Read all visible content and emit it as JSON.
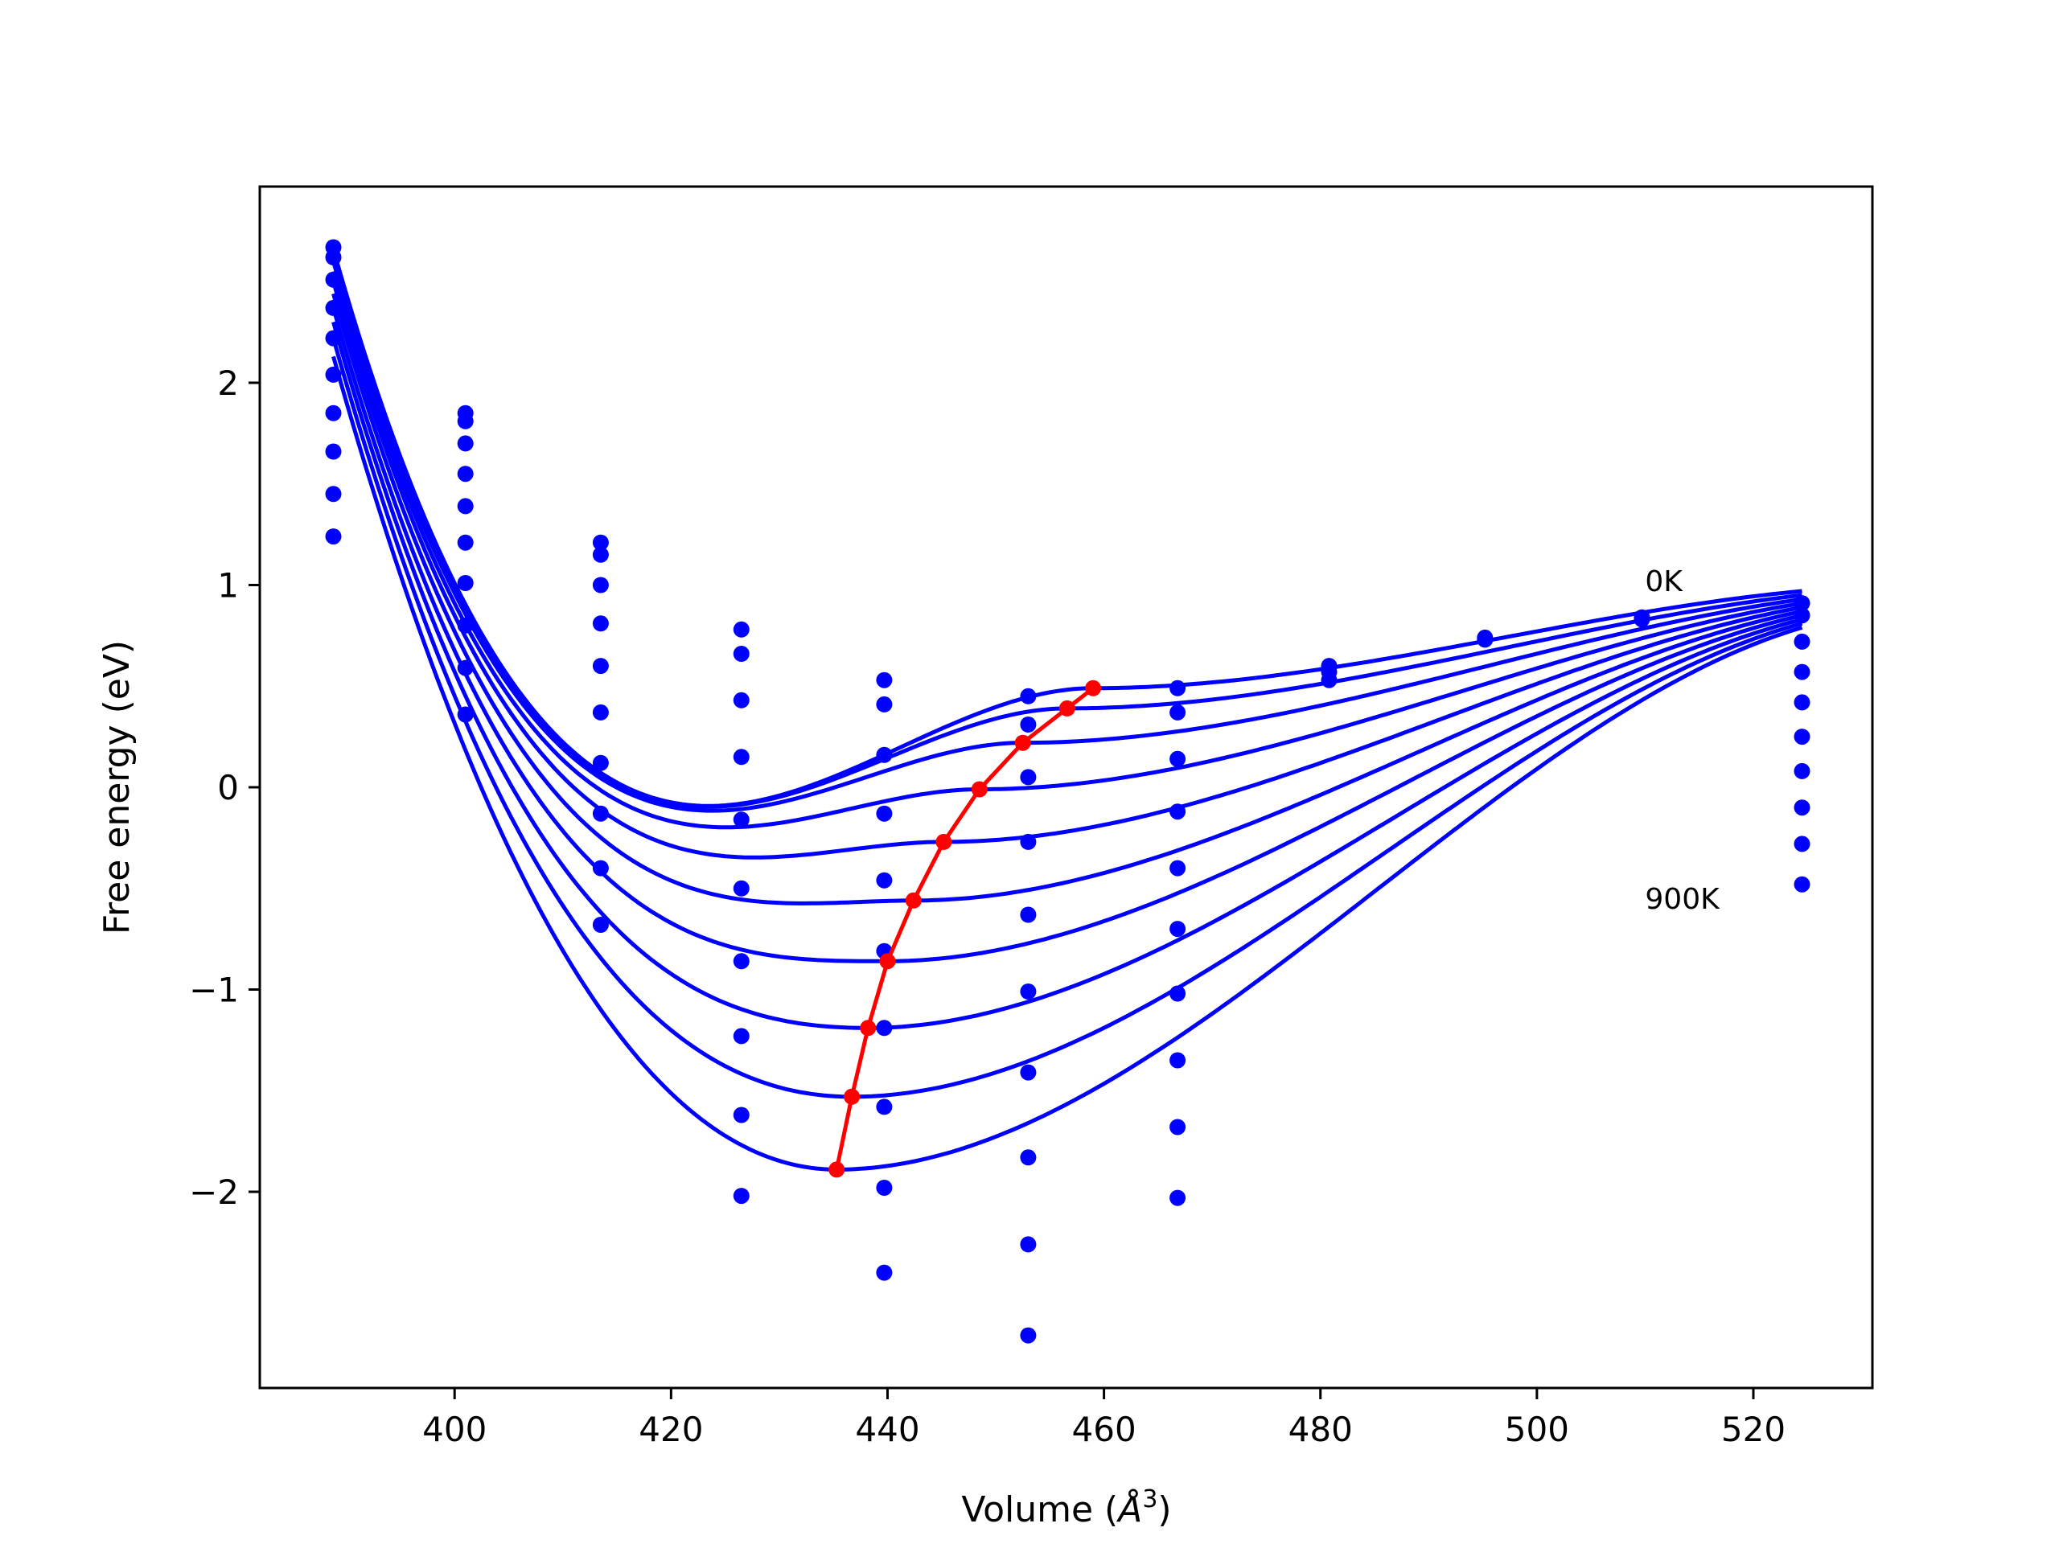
{
  "chart_data": {
    "type": "line",
    "xlabel_main": "Volume (",
    "xlabel_unit": "Å",
    "xlabel_exp": "3",
    "xlabel_close": ")",
    "ylabel": "Free energy (eV)",
    "xlim": [
      382,
      531
    ],
    "ylim": [
      -2.97,
      2.97
    ],
    "xticks": [
      400,
      420,
      440,
      460,
      480,
      500,
      520
    ],
    "yticks": [
      -2,
      -1,
      0,
      1,
      2
    ],
    "ytick_labels": [
      "−2",
      "−1",
      "0",
      "1",
      "2"
    ],
    "annotations": [
      {
        "text": "0K",
        "x": 510,
        "y": 0.97
      },
      {
        "text": "900K",
        "x": 510,
        "y": -0.6
      }
    ],
    "colors": {
      "curves": "#0000ff",
      "points": "#0000ff",
      "minimum_path": "#ff0000"
    },
    "isotherms": [
      {
        "min_volume": 459.0,
        "min_energy": 0.49,
        "left_energy": 2.66,
        "right_energy": 0.97
      },
      {
        "min_volume": 456.6,
        "min_energy": 0.39,
        "left_energy": 2.64,
        "right_energy": 0.95
      },
      {
        "min_volume": 452.5,
        "min_energy": 0.22,
        "left_energy": 2.6,
        "right_energy": 0.93
      },
      {
        "min_volume": 448.5,
        "min_energy": -0.01,
        "left_energy": 2.55,
        "right_energy": 0.91
      },
      {
        "min_volume": 445.2,
        "min_energy": -0.27,
        "left_energy": 2.5,
        "right_energy": 0.89
      },
      {
        "min_volume": 442.4,
        "min_energy": -0.56,
        "left_energy": 2.44,
        "right_energy": 0.87
      },
      {
        "min_volume": 440.0,
        "min_energy": -0.86,
        "left_energy": 2.37,
        "right_energy": 0.85
      },
      {
        "min_volume": 438.2,
        "min_energy": -1.19,
        "left_energy": 2.3,
        "right_energy": 0.83
      },
      {
        "min_volume": 436.7,
        "min_energy": -1.53,
        "left_energy": 2.22,
        "right_energy": 0.81
      },
      {
        "min_volume": 435.3,
        "min_energy": -1.89,
        "left_energy": 2.13,
        "right_energy": 0.79
      }
    ],
    "minimum_path": {
      "x": [
        459.0,
        456.6,
        452.5,
        448.5,
        445.2,
        442.4,
        440.0,
        438.2,
        436.7,
        435.3
      ],
      "y": [
        0.49,
        0.39,
        0.22,
        -0.01,
        -0.27,
        -0.56,
        -0.86,
        -1.19,
        -1.53,
        -1.89
      ]
    },
    "data_points": [
      {
        "x": 388.8,
        "y": [
          2.67,
          2.62,
          2.51,
          2.37,
          2.22,
          2.04,
          1.85,
          1.66,
          1.45,
          1.24
        ]
      },
      {
        "x": 401.0,
        "y": [
          1.85,
          1.81,
          1.7,
          1.55,
          1.39,
          1.21,
          1.01,
          0.8,
          0.59,
          0.36
        ]
      },
      {
        "x": 413.5,
        "y": [
          1.21,
          1.15,
          1.0,
          0.81,
          0.6,
          0.37,
          0.12,
          -0.13,
          -0.4,
          -0.68
        ]
      },
      {
        "x": 426.5,
        "y": [
          0.78,
          0.66,
          0.43,
          0.15,
          -0.16,
          -0.5,
          -0.86,
          -1.23,
          -1.62,
          -2.02
        ]
      },
      {
        "x": 439.7,
        "y": [
          0.53,
          0.41,
          0.16,
          -0.13,
          -0.46,
          -0.81,
          -1.19,
          -1.58,
          -1.98,
          -2.4
        ]
      },
      {
        "x": 453.0,
        "y": [
          0.45,
          0.31,
          0.05,
          -0.27,
          -0.63,
          -1.01,
          -1.41,
          -1.83,
          -2.26,
          -2.71
        ]
      },
      {
        "x": 466.8,
        "y": [
          0.49,
          0.37,
          0.14,
          -0.12,
          -0.4,
          -0.7,
          -1.02,
          -1.35,
          -1.68,
          -2.03
        ]
      },
      {
        "x": 480.8,
        "y": [
          0.6,
          0.57,
          0.53
        ]
      },
      {
        "x": 495.2,
        "y": [
          0.74,
          0.73
        ]
      },
      {
        "x": 509.7,
        "y": [
          0.84,
          0.83
        ]
      },
      {
        "x": 524.5,
        "y": [
          0.91,
          0.85,
          0.72,
          0.57,
          0.42,
          0.25,
          0.08,
          -0.1,
          -0.28,
          -0.48
        ]
      }
    ]
  }
}
